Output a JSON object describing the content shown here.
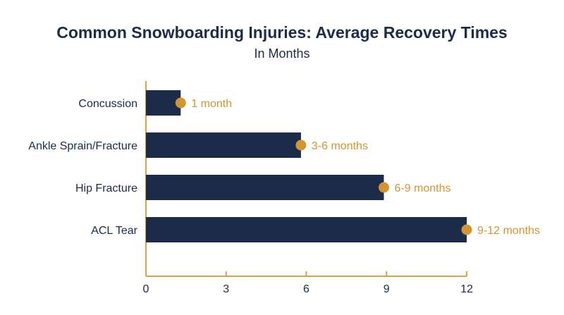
{
  "chart_data": {
    "type": "bar",
    "orientation": "horizontal",
    "title": "Common Snowboarding Injuries: Average Recovery Times",
    "subtitle": "In Months",
    "categories": [
      "Concussion",
      "Ankle Sprain/Fracture",
      "Hip Fracture",
      "ACL Tear"
    ],
    "values": [
      1.3,
      5.8,
      8.9,
      12
    ],
    "data_labels": [
      "1 month",
      "3-6 months",
      "6-9 months",
      "9-12 months"
    ],
    "xlim": [
      0,
      12
    ],
    "xticks": [
      0,
      3,
      6,
      9,
      12
    ],
    "xlabel": "",
    "ylabel": "",
    "grid": false,
    "legend": "none",
    "colors": {
      "bar": "#1c2b48",
      "marker": "#d4952e",
      "axis": "#d4a54a",
      "text": "#1c2b48",
      "data_label": "#d4952e"
    }
  }
}
